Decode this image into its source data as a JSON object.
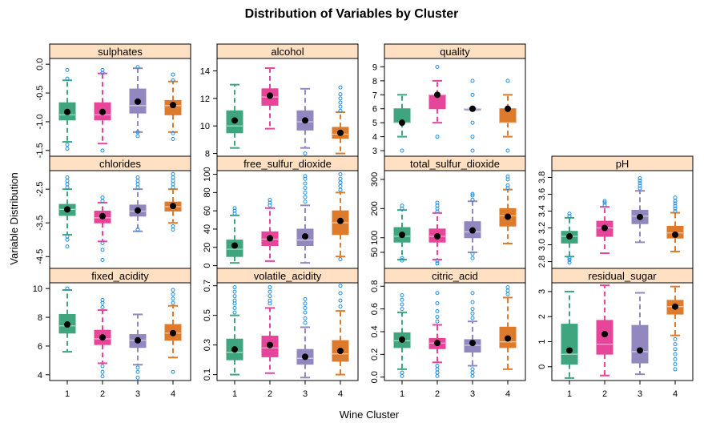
{
  "chart_data": {
    "type": "box",
    "title": "Distribution of Variables by Cluster",
    "xlabel": "Wine Cluster",
    "ylabel": "Variable Distribution",
    "categories": [
      "1",
      "2",
      "3",
      "4"
    ],
    "colors": {
      "1": "#3fa57f",
      "2": "#e7459a",
      "3": "#9387c0",
      "4": "#de7a2c",
      "outlier": "#1f8fe6",
      "strip": "#ffe0c2",
      "mean": "#000000"
    },
    "grid": false,
    "panels": [
      {
        "name": "sulphates",
        "ylim": [
          -1.6,
          0.1
        ],
        "yticks": [
          0.0,
          -0.5,
          -1.0,
          -1.5
        ],
        "yticklabels": [
          "0.0",
          "-0.5",
          "-1.0",
          "-1.5"
        ],
        "yrot": true,
        "boxes": [
          {
            "q1": -0.97,
            "med": -0.88,
            "q3": -0.67,
            "wlo": -1.35,
            "whi": -0.28,
            "mean": -0.83,
            "out_hi": [
              -0.25,
              -0.1
            ],
            "out_lo": [
              -1.4,
              -1.47
            ]
          },
          {
            "q1": -0.97,
            "med": -0.88,
            "q3": -0.67,
            "wlo": -1.38,
            "whi": -0.16,
            "mean": -0.83,
            "out_hi": [
              -0.15,
              -0.1
            ],
            "out_lo": [
              -1.5
            ]
          },
          {
            "q1": -0.85,
            "med": -0.72,
            "q3": -0.43,
            "wlo": -1.18,
            "whi": -0.07,
            "mean": -0.65,
            "out_hi": [
              -0.05
            ],
            "out_lo": [
              -1.18,
              -1.25
            ]
          },
          {
            "q1": -0.88,
            "med": -0.72,
            "q3": -0.63,
            "wlo": -1.18,
            "whi": -0.3,
            "mean": -0.71,
            "out_hi": [
              -0.28,
              -0.18
            ],
            "out_lo": [
              -1.2,
              -1.3
            ]
          }
        ]
      },
      {
        "name": "alcohol",
        "ylim": [
          7.8,
          14.9
        ],
        "yticks": [
          8,
          10,
          12,
          14
        ],
        "yticklabels": [
          "8",
          "10",
          "12",
          "14"
        ],
        "yrot": false,
        "boxes": [
          {
            "q1": 9.5,
            "med": 10.0,
            "q3": 11.1,
            "wlo": 8.4,
            "whi": 13.0,
            "mean": 10.4,
            "out_hi": [],
            "out_lo": []
          },
          {
            "q1": 11.5,
            "med": 12.1,
            "q3": 12.7,
            "wlo": 9.8,
            "whi": 14.2,
            "mean": 12.2,
            "out_hi": [],
            "out_lo": []
          },
          {
            "q1": 9.7,
            "med": 10.3,
            "q3": 11.1,
            "wlo": 8.4,
            "whi": 12.7,
            "mean": 10.4,
            "out_hi": [],
            "out_lo": [
              8.0
            ]
          },
          {
            "q1": 9.1,
            "med": 9.4,
            "q3": 9.9,
            "wlo": 8.0,
            "whi": 11.0,
            "mean": 9.5,
            "out_hi": [
              11.1,
              11.4,
              11.7,
              12.0,
              12.3,
              12.8
            ],
            "out_lo": []
          }
        ]
      },
      {
        "name": "quality",
        "ylim": [
          2.6,
          9.6
        ],
        "yticks": [
          3,
          4,
          5,
          6,
          7,
          8,
          9
        ],
        "yticklabels": [
          "3",
          "4",
          "5",
          "6",
          "7",
          "8",
          "9"
        ],
        "yrot": false,
        "boxes": [
          {
            "q1": 5,
            "med": 5,
            "q3": 6,
            "wlo": 4,
            "whi": 7,
            "mean": 5.0,
            "out_hi": [],
            "out_lo": [
              3
            ]
          },
          {
            "q1": 6,
            "med": 7,
            "q3": 7,
            "wlo": 5,
            "whi": 8,
            "mean": 7.0,
            "out_hi": [
              9
            ],
            "out_lo": [
              4
            ]
          },
          {
            "q1": 6,
            "med": 6,
            "q3": 6,
            "wlo": 6,
            "whi": 6,
            "mean": 6.0,
            "out_hi": [
              7,
              8
            ],
            "out_lo": [
              5,
              4,
              3
            ]
          },
          {
            "q1": 5,
            "med": 5,
            "q3": 6,
            "wlo": 4,
            "whi": 7,
            "mean": 6.0,
            "out_hi": [
              8
            ],
            "out_lo": [
              3
            ]
          }
        ]
      },
      {
        "name": "chlorides",
        "ylim": [
          -4.85,
          -1.95
        ],
        "yticks": [
          -2.5,
          -3.5,
          -4.5
        ],
        "yticklabels": [
          "-2.5",
          "-3.5",
          "-4.5"
        ],
        "yrot": true,
        "boxes": [
          {
            "q1": -3.28,
            "med": -3.1,
            "q3": -2.95,
            "wlo": -3.85,
            "whi": -2.5,
            "mean": -3.1,
            "out_hi": [
              -2.45,
              -2.35,
              -2.25,
              -2.15
            ],
            "out_lo": [
              -3.9,
              -4.0,
              -4.2
            ]
          },
          {
            "q1": -3.5,
            "med": -3.35,
            "q3": -3.15,
            "wlo": -4.05,
            "whi": -2.9,
            "mean": -3.3,
            "out_hi": [
              -2.85,
              -2.75
            ],
            "out_lo": [
              -4.1,
              -4.3,
              -4.6
            ]
          },
          {
            "q1": -3.3,
            "med": -3.15,
            "q3": -2.97,
            "wlo": -3.75,
            "whi": -2.5,
            "mean": -3.13,
            "out_hi": [
              -2.45,
              -2.35,
              -2.25,
              -2.15
            ],
            "out_lo": [
              -3.7
            ]
          },
          {
            "q1": -3.15,
            "med": -3.02,
            "q3": -2.88,
            "wlo": -3.5,
            "whi": -2.5,
            "mean": -3.0,
            "out_hi": [
              -2.45,
              -2.35,
              -2.25,
              -2.15,
              -2.05
            ],
            "out_lo": [
              -3.6,
              -3.7
            ]
          }
        ]
      },
      {
        "name": "free_sulfur_dioxide",
        "ylim": [
          -3,
          104
        ],
        "yticks": [
          0,
          20,
          40,
          60,
          80,
          100
        ],
        "yticklabels": [
          "0",
          "20",
          "40",
          "60",
          "80",
          "100"
        ],
        "yrot": true,
        "boxes": [
          {
            "q1": 10,
            "med": 18,
            "q3": 28,
            "wlo": 3,
            "whi": 55,
            "mean": 22,
            "out_hi": [
              57,
              60,
              63
            ],
            "out_lo": []
          },
          {
            "q1": 22,
            "med": 29,
            "q3": 37,
            "wlo": 5,
            "whi": 63,
            "mean": 30,
            "out_hi": [
              66,
              69,
              72
            ],
            "out_lo": []
          },
          {
            "q1": 22,
            "med": 28,
            "q3": 40,
            "wlo": 3,
            "whi": 66,
            "mean": 32,
            "out_hi": [
              70,
              75,
              80,
              85,
              90,
              95,
              98
            ],
            "out_lo": []
          },
          {
            "q1": 34,
            "med": 47,
            "q3": 60,
            "wlo": 10,
            "whi": 80,
            "mean": 49,
            "out_hi": [
              83,
              87,
              91,
              95,
              100
            ],
            "out_lo": [
              7
            ]
          }
        ]
      },
      {
        "name": "total_sulfur_dioxide",
        "ylim": [
          -5,
          330
        ],
        "yticks": [
          0,
          50,
          100,
          200,
          300
        ],
        "yticklabels": [
          "50",
          "100",
          "200",
          "300"
        ],
        "yrot": true,
        "yticks_used": [
          50,
          100,
          200,
          300
        ],
        "boxes": [
          {
            "q1": 85,
            "med": 105,
            "q3": 135,
            "wlo": 25,
            "whi": 195,
            "mean": 110,
            "out_hi": [
              200,
              210
            ],
            "out_lo": [
              22,
              30
            ]
          },
          {
            "q1": 85,
            "med": 105,
            "q3": 130,
            "wlo": 25,
            "whi": 185,
            "mean": 105,
            "out_hi": [
              190,
              200,
              210,
              220
            ],
            "out_lo": [
              20,
              12
            ]
          },
          {
            "q1": 100,
            "med": 120,
            "q3": 155,
            "wlo": 50,
            "whi": 225,
            "mean": 125,
            "out_hi": [
              230,
              245,
              250
            ],
            "out_lo": [
              45,
              30
            ]
          },
          {
            "q1": 140,
            "med": 175,
            "q3": 200,
            "wlo": 80,
            "whi": 265,
            "mean": 172,
            "out_hi": [
              270,
              280,
              300,
              310
            ],
            "out_lo": []
          }
        ]
      },
      {
        "name": "pH",
        "ylim": [
          2.72,
          3.88
        ],
        "yticks": [
          2.8,
          3.0,
          3.2,
          3.4,
          3.6,
          3.8
        ],
        "yticklabels": [
          "2.8",
          "3.0",
          "3.2",
          "3.4",
          "3.6",
          "3.8"
        ],
        "yrot": true,
        "boxes": [
          {
            "q1": 3.02,
            "med": 3.1,
            "q3": 3.16,
            "wlo": 2.86,
            "whi": 3.32,
            "mean": 3.1,
            "out_hi": [
              3.34,
              3.37
            ],
            "out_lo": [
              2.84,
              2.82,
              2.79
            ]
          },
          {
            "q1": 3.1,
            "med": 3.2,
            "q3": 3.28,
            "wlo": 2.9,
            "whi": 3.45,
            "mean": 3.2,
            "out_hi": [
              3.47,
              3.5,
              3.52
            ],
            "out_lo": []
          },
          {
            "q1": 3.25,
            "med": 3.34,
            "q3": 3.41,
            "wlo": 3.03,
            "whi": 3.64,
            "mean": 3.33,
            "out_hi": [
              3.67,
              3.7,
              3.73,
              3.76,
              3.79
            ],
            "out_lo": []
          },
          {
            "q1": 3.08,
            "med": 3.14,
            "q3": 3.22,
            "wlo": 2.92,
            "whi": 3.38,
            "mean": 3.12,
            "out_hi": [
              3.4,
              3.43,
              3.46,
              3.49,
              3.52,
              3.56
            ],
            "out_lo": []
          }
        ]
      },
      {
        "name": "fixed_acidity",
        "ylim": [
          3.6,
          10.4
        ],
        "yticks": [
          4,
          6,
          8,
          10
        ],
        "yticklabels": [
          "4",
          "6",
          "8",
          "10"
        ],
        "yrot": false,
        "boxes": [
          {
            "q1": 6.9,
            "med": 7.4,
            "q3": 8.2,
            "wlo": 5.6,
            "whi": 9.9,
            "mean": 7.5,
            "out_hi": [
              10.0
            ],
            "out_lo": []
          },
          {
            "q1": 6.1,
            "med": 6.5,
            "q3": 7.1,
            "wlo": 4.8,
            "whi": 8.5,
            "mean": 6.6,
            "out_hi": [
              8.7,
              9.0,
              9.2
            ],
            "out_lo": [
              4.6,
              4.2,
              3.9
            ]
          },
          {
            "q1": 5.9,
            "med": 6.4,
            "q3": 6.8,
            "wlo": 4.7,
            "whi": 8.2,
            "mean": 6.4,
            "out_hi": [],
            "out_lo": [
              4.5,
              4.2,
              3.8
            ]
          },
          {
            "q1": 6.4,
            "med": 6.9,
            "q3": 7.5,
            "wlo": 5.2,
            "whi": 8.8,
            "mean": 6.9,
            "out_hi": [
              9.0,
              9.3,
              9.6,
              9.9
            ],
            "out_lo": [
              4.2
            ]
          }
        ]
      },
      {
        "name": "volatile_acidity",
        "ylim": [
          0.06,
          0.72
        ],
        "yticks": [
          0.1,
          0.3,
          0.5,
          0.7
        ],
        "yticklabels": [
          "0.1",
          "0.3",
          "0.5",
          "0.7"
        ],
        "yrot": true,
        "boxes": [
          {
            "q1": 0.2,
            "med": 0.25,
            "q3": 0.34,
            "wlo": 0.1,
            "whi": 0.5,
            "mean": 0.27,
            "out_hi": [
              0.52,
              0.55,
              0.58,
              0.6,
              0.63,
              0.66,
              0.69
            ],
            "out_lo": []
          },
          {
            "q1": 0.22,
            "med": 0.28,
            "q3": 0.36,
            "wlo": 0.11,
            "whi": 0.55,
            "mean": 0.3,
            "out_hi": [
              0.58,
              0.6,
              0.63,
              0.66,
              0.69
            ],
            "out_lo": []
          },
          {
            "q1": 0.17,
            "med": 0.21,
            "q3": 0.27,
            "wlo": 0.08,
            "whi": 0.42,
            "mean": 0.22,
            "out_hi": [
              0.45,
              0.48,
              0.52,
              0.55,
              0.58,
              0.61
            ],
            "out_lo": []
          },
          {
            "q1": 0.19,
            "med": 0.24,
            "q3": 0.33,
            "wlo": 0.1,
            "whi": 0.53,
            "mean": 0.26,
            "out_hi": [
              0.56,
              0.6,
              0.65,
              0.7
            ],
            "out_lo": []
          }
        ]
      },
      {
        "name": "citric_acid",
        "ylim": [
          -0.03,
          0.83
        ],
        "yticks": [
          0.0,
          0.2,
          0.4,
          0.6,
          0.8
        ],
        "yticklabels": [
          "0.0",
          "0.2",
          "0.4",
          "0.6",
          "0.8"
        ],
        "yrot": true,
        "boxes": [
          {
            "q1": 0.26,
            "med": 0.32,
            "q3": 0.39,
            "wlo": 0.07,
            "whi": 0.57,
            "mean": 0.33,
            "out_hi": [
              0.6,
              0.64,
              0.68,
              0.72
            ],
            "out_lo": [
              0.04,
              0.01
            ]
          },
          {
            "q1": 0.25,
            "med": 0.3,
            "q3": 0.34,
            "wlo": 0.13,
            "whi": 0.46,
            "mean": 0.3,
            "out_hi": [
              0.49,
              0.53,
              0.58,
              0.65,
              0.74
            ],
            "out_lo": [
              0.1,
              0.07,
              0.04,
              0.01
            ]
          },
          {
            "q1": 0.22,
            "med": 0.28,
            "q3": 0.33,
            "wlo": 0.1,
            "whi": 0.49,
            "mean": 0.3,
            "out_hi": [
              0.52,
              0.56,
              0.6,
              0.66,
              0.74
            ],
            "out_lo": [
              0.07,
              0.04,
              0.01
            ]
          },
          {
            "q1": 0.26,
            "med": 0.31,
            "q3": 0.44,
            "wlo": 0.07,
            "whi": 0.7,
            "mean": 0.34,
            "out_hi": [
              0.73,
              0.76,
              0.79
            ],
            "out_lo": []
          }
        ]
      },
      {
        "name": "residual_sugar",
        "ylim": [
          -0.55,
          3.35
        ],
        "yticks": [
          0,
          1,
          2,
          3
        ],
        "yticklabels": [
          "0",
          "1",
          "2",
          "3"
        ],
        "yrot": true,
        "boxes": [
          {
            "q1": 0.1,
            "med": 0.5,
            "q3": 1.7,
            "wlo": -0.45,
            "whi": 3.0,
            "mean": 0.65,
            "out_hi": [],
            "out_lo": []
          },
          {
            "q1": 0.5,
            "med": 0.9,
            "q3": 1.85,
            "wlo": -0.35,
            "whi": 3.25,
            "mean": 1.3,
            "out_hi": [],
            "out_lo": []
          },
          {
            "q1": 0.15,
            "med": 0.6,
            "q3": 1.65,
            "wlo": -0.3,
            "whi": 2.95,
            "mean": 0.65,
            "out_hi": [],
            "out_lo": []
          },
          {
            "q1": 2.1,
            "med": 2.4,
            "q3": 2.65,
            "wlo": 1.25,
            "whi": 3.2,
            "mean": 2.4,
            "out_hi": [],
            "out_lo": [
              1.1,
              0.9,
              0.7,
              0.5,
              0.3,
              0.1,
              -0.1
            ]
          }
        ]
      }
    ]
  }
}
